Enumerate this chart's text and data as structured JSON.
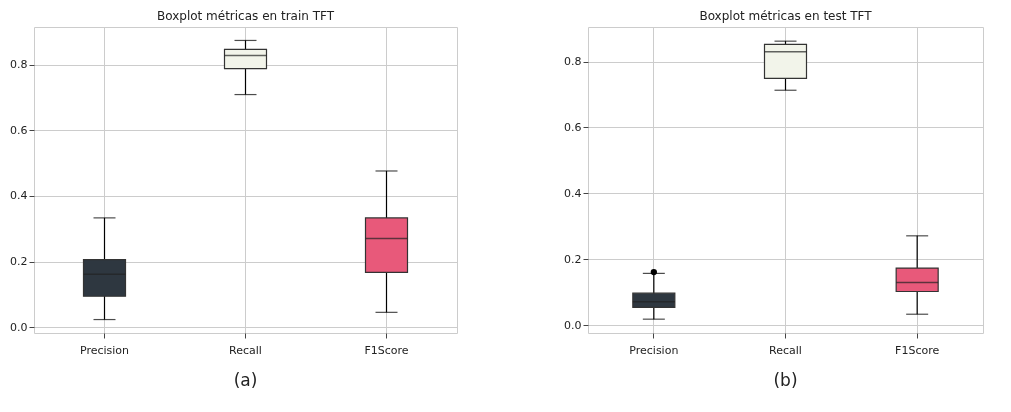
{
  "chart_data": [
    {
      "type": "box",
      "title": "Boxplot métricas en train TFT",
      "categories": [
        "Precision",
        "Recall",
        "F1Score"
      ],
      "colors": [
        "#2e3740",
        "#f2f4ea",
        "#e8597a"
      ],
      "boxes": [
        {
          "low": 0.023,
          "q1": 0.094,
          "median": 0.161,
          "q3": 0.206,
          "high": 0.333
        },
        {
          "low": 0.709,
          "q1": 0.788,
          "median": 0.828,
          "q3": 0.847,
          "high": 0.874
        },
        {
          "low": 0.045,
          "q1": 0.167,
          "median": 0.27,
          "q3": 0.333,
          "high": 0.476
        }
      ],
      "ylim": [
        -0.018,
        0.915
      ],
      "yticks": [
        {
          "value": 0,
          "label": "0.0"
        },
        0.2,
        0.4,
        0.6,
        0.8
      ],
      "grid": true,
      "annotations": [
        "(a)"
      ]
    },
    {
      "type": "box",
      "title": "Boxplot métricas en test TFT",
      "categories": [
        "Precision",
        "Recall",
        "F1Score"
      ],
      "colors": [
        "#2e3740",
        "#f2f4ea",
        "#e8597a"
      ],
      "boxes": [
        {
          "low": 0.018,
          "q1": 0.054,
          "median": 0.071,
          "q3": 0.097,
          "high": 0.157,
          "outliers": [
            0.161
          ]
        },
        {
          "low": 0.713,
          "q1": 0.749,
          "median": 0.83,
          "q3": 0.852,
          "high": 0.862
        },
        {
          "low": 0.033,
          "q1": 0.102,
          "median": 0.129,
          "q3": 0.173,
          "high": 0.271
        }
      ],
      "ylim": [
        -0.024,
        0.905
      ],
      "yticks": [
        {
          "value": 0,
          "label": "0.0"
        },
        0.2,
        0.4,
        0.6,
        0.8
      ],
      "grid": true,
      "annotations": [
        "(b)"
      ]
    }
  ]
}
